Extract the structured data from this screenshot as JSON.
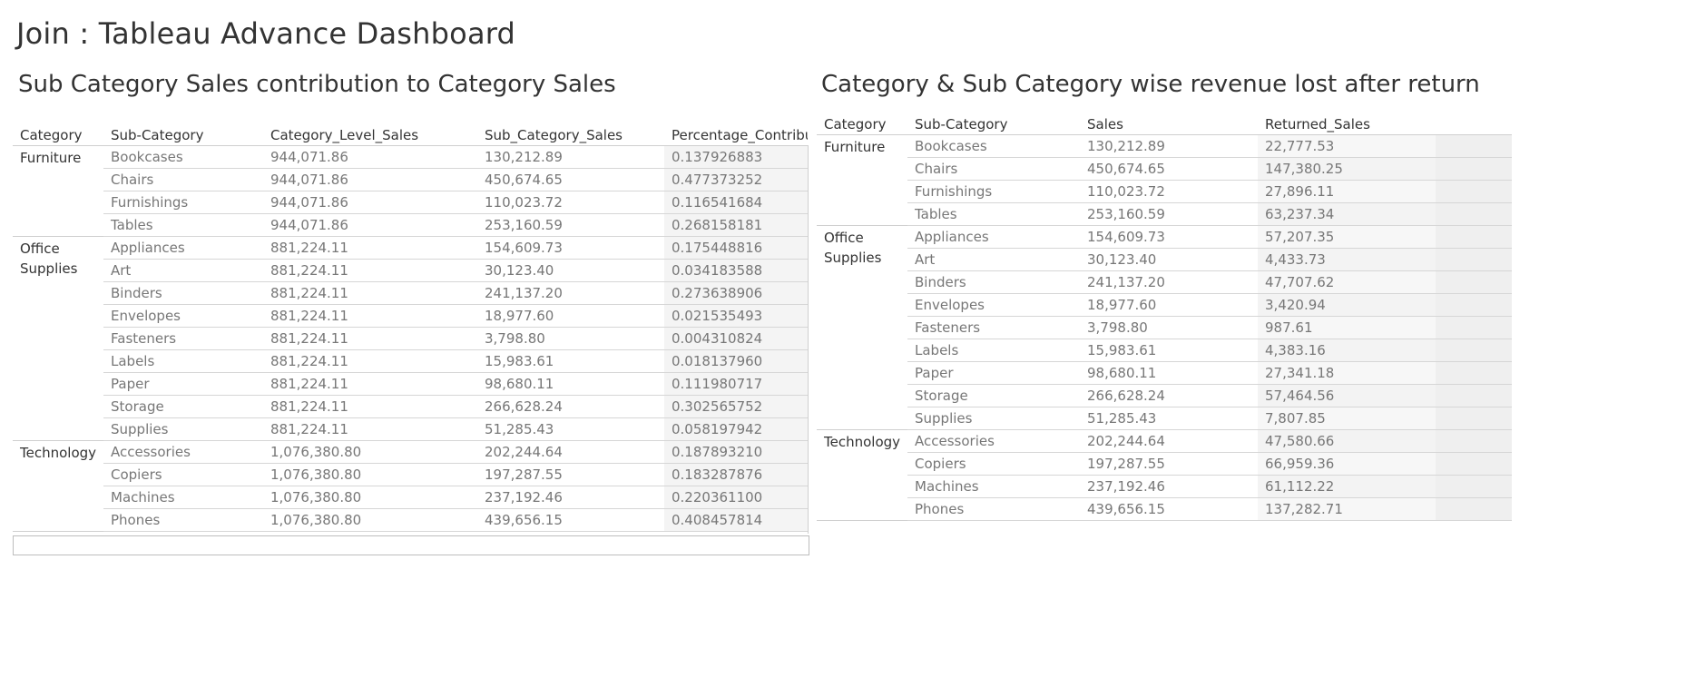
{
  "dashboard": {
    "title": "Join : Tableau Advance Dashboard"
  },
  "ws1": {
    "title": "Sub Category Sales contribution to Category Sales",
    "headers": [
      "Category",
      "Sub-Category",
      "Category_Level_Sales",
      "Sub_Category_Sales",
      "Percentage_Contribu"
    ],
    "groups": [
      {
        "category": "Furniture",
        "rows": [
          [
            "Bookcases",
            "944,071.86",
            "130,212.89",
            "0.137926883"
          ],
          [
            "Chairs",
            "944,071.86",
            "450,674.65",
            "0.477373252"
          ],
          [
            "Furnishings",
            "944,071.86",
            "110,023.72",
            "0.116541684"
          ],
          [
            "Tables",
            "944,071.86",
            "253,160.59",
            "0.268158181"
          ]
        ]
      },
      {
        "category": "Office Supplies",
        "rows": [
          [
            "Appliances",
            "881,224.11",
            "154,609.73",
            "0.175448816"
          ],
          [
            "Art",
            "881,224.11",
            "30,123.40",
            "0.034183588"
          ],
          [
            "Binders",
            "881,224.11",
            "241,137.20",
            "0.273638906"
          ],
          [
            "Envelopes",
            "881,224.11",
            "18,977.60",
            "0.021535493"
          ],
          [
            "Fasteners",
            "881,224.11",
            "3,798.80",
            "0.004310824"
          ],
          [
            "Labels",
            "881,224.11",
            "15,983.61",
            "0.018137960"
          ],
          [
            "Paper",
            "881,224.11",
            "98,680.11",
            "0.111980717"
          ],
          [
            "Storage",
            "881,224.11",
            "266,628.24",
            "0.302565752"
          ],
          [
            "Supplies",
            "881,224.11",
            "51,285.43",
            "0.058197942"
          ]
        ]
      },
      {
        "category": "Technology",
        "rows": [
          [
            "Accessories",
            "1,076,380.80",
            "202,244.64",
            "0.187893210"
          ],
          [
            "Copiers",
            "1,076,380.80",
            "197,287.55",
            "0.183287876"
          ],
          [
            "Machines",
            "1,076,380.80",
            "237,192.46",
            "0.220361100"
          ],
          [
            "Phones",
            "1,076,380.80",
            "439,656.15",
            "0.408457814"
          ]
        ]
      }
    ]
  },
  "ws2": {
    "title": "Category & Sub Category wise revenue lost after return",
    "headers": [
      "Category",
      "Sub-Category",
      "Sales",
      "Returned_Sales",
      ""
    ],
    "groups": [
      {
        "category": "Furniture",
        "rows": [
          [
            "Bookcases",
            "130,212.89",
            "22,777.53"
          ],
          [
            "Chairs",
            "450,674.65",
            "147,380.25"
          ],
          [
            "Furnishings",
            "110,023.72",
            "27,896.11"
          ],
          [
            "Tables",
            "253,160.59",
            "63,237.34"
          ]
        ]
      },
      {
        "category": "Office Supplies",
        "rows": [
          [
            "Appliances",
            "154,609.73",
            "57,207.35"
          ],
          [
            "Art",
            "30,123.40",
            "4,433.73"
          ],
          [
            "Binders",
            "241,137.20",
            "47,707.62"
          ],
          [
            "Envelopes",
            "18,977.60",
            "3,420.94"
          ],
          [
            "Fasteners",
            "3,798.80",
            "987.61"
          ],
          [
            "Labels",
            "15,983.61",
            "4,383.16"
          ],
          [
            "Paper",
            "98,680.11",
            "27,341.18"
          ],
          [
            "Storage",
            "266,628.24",
            "57,464.56"
          ],
          [
            "Supplies",
            "51,285.43",
            "7,807.85"
          ]
        ]
      },
      {
        "category": "Technology",
        "rows": [
          [
            "Accessories",
            "202,244.64",
            "47,580.66"
          ],
          [
            "Copiers",
            "197,287.55",
            "66,959.36"
          ],
          [
            "Machines",
            "237,192.46",
            "61,112.22"
          ],
          [
            "Phones",
            "439,656.15",
            "137,282.71"
          ]
        ]
      }
    ]
  }
}
